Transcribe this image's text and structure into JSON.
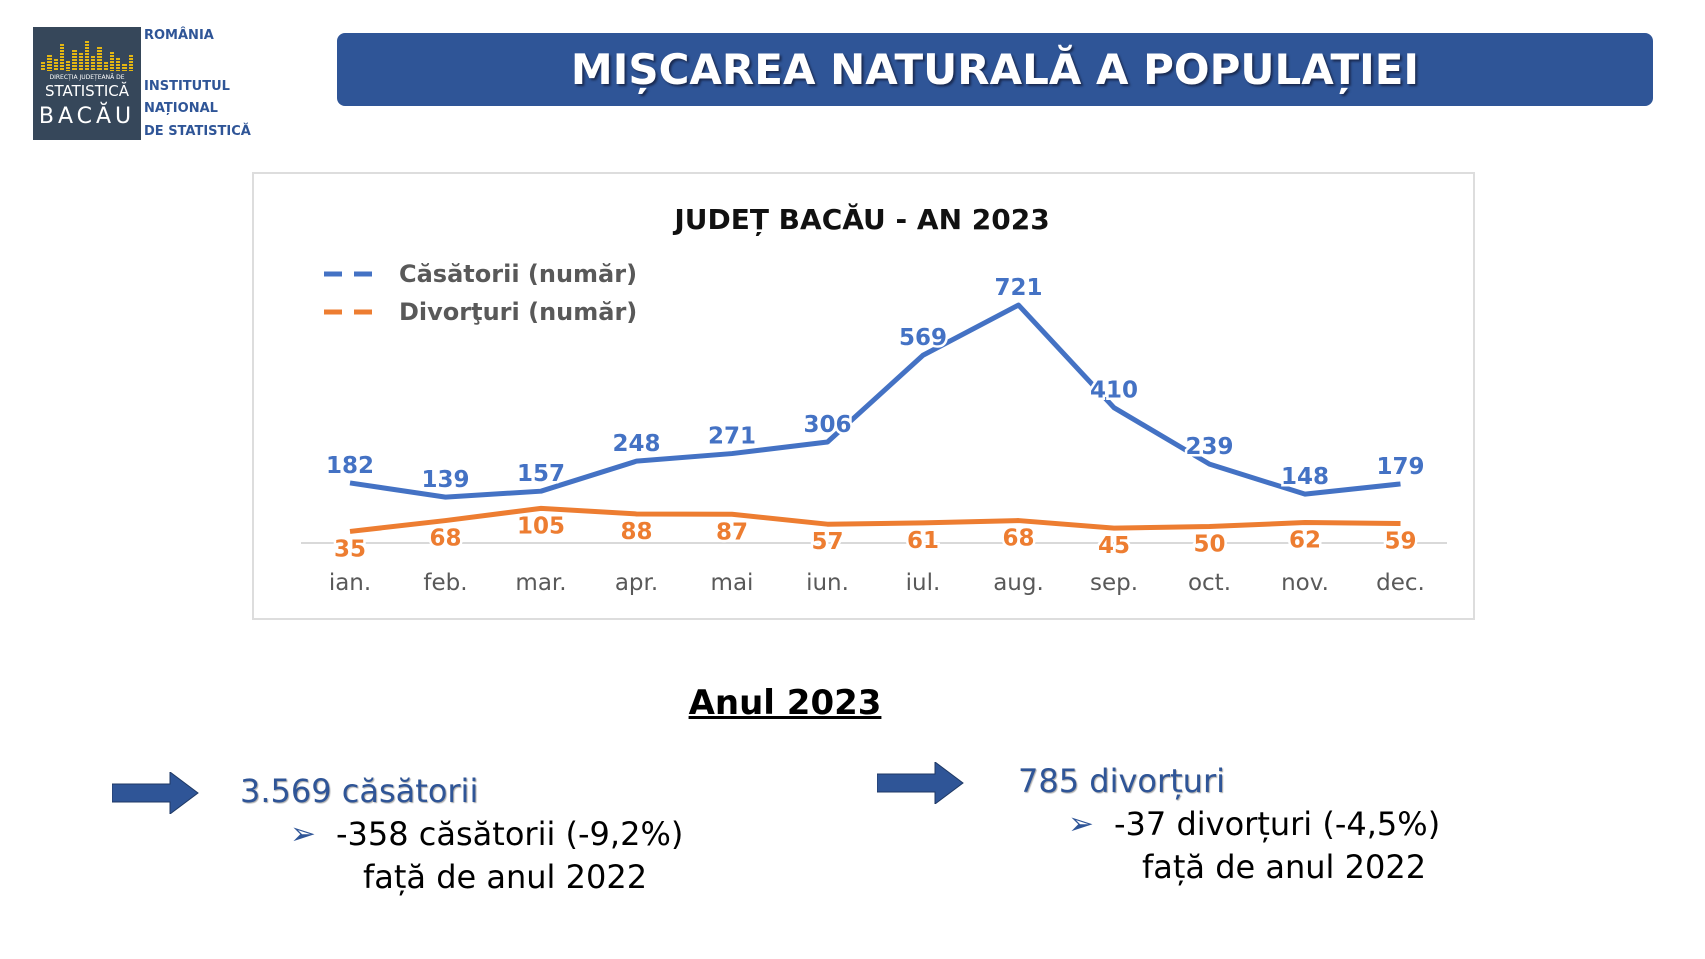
{
  "header": {
    "logo": {
      "line1": "DIRECȚIA JUDEȚEANĂ DE",
      "line2": "STATISTICĂ",
      "line3": "BACĂU"
    },
    "org_country": "ROMÂNIA",
    "org_name": [
      "INSTITUTUL",
      "NAȚIONAL",
      "DE STATISTICĂ"
    ],
    "title": "MIȘCAREA NATURALĂ A POPULAȚIEI"
  },
  "chart_data": {
    "type": "line",
    "title": "JUDEȚ BACĂU - AN 2023",
    "categories": [
      "ian.",
      "feb.",
      "mar.",
      "apr.",
      "mai",
      "iun.",
      "iul.",
      "aug.",
      "sep.",
      "oct.",
      "nov.",
      "dec."
    ],
    "series": [
      {
        "name": "Căsătorii (număr)",
        "color": "#4472c4",
        "values": [
          182,
          139,
          157,
          248,
          271,
          306,
          569,
          721,
          410,
          239,
          148,
          179
        ]
      },
      {
        "name": "Divorţuri (număr)",
        "color": "#ed7d31",
        "values": [
          35,
          68,
          105,
          88,
          87,
          57,
          61,
          68,
          45,
          50,
          62,
          59
        ]
      }
    ],
    "ylim": [
      0,
      800
    ],
    "grid": false,
    "legend": "top-left",
    "data_labels": true
  },
  "summary": {
    "heading": "Anul 2023",
    "marriages": {
      "main": "3.569 căsătorii",
      "change": "-358 căsătorii (-9,2%)",
      "compare": "față de anul 2022"
    },
    "divorces": {
      "main": "785 divorțuri",
      "change": "-37 divorțuri (-4,5%)",
      "compare": "față de anul 2022"
    }
  }
}
